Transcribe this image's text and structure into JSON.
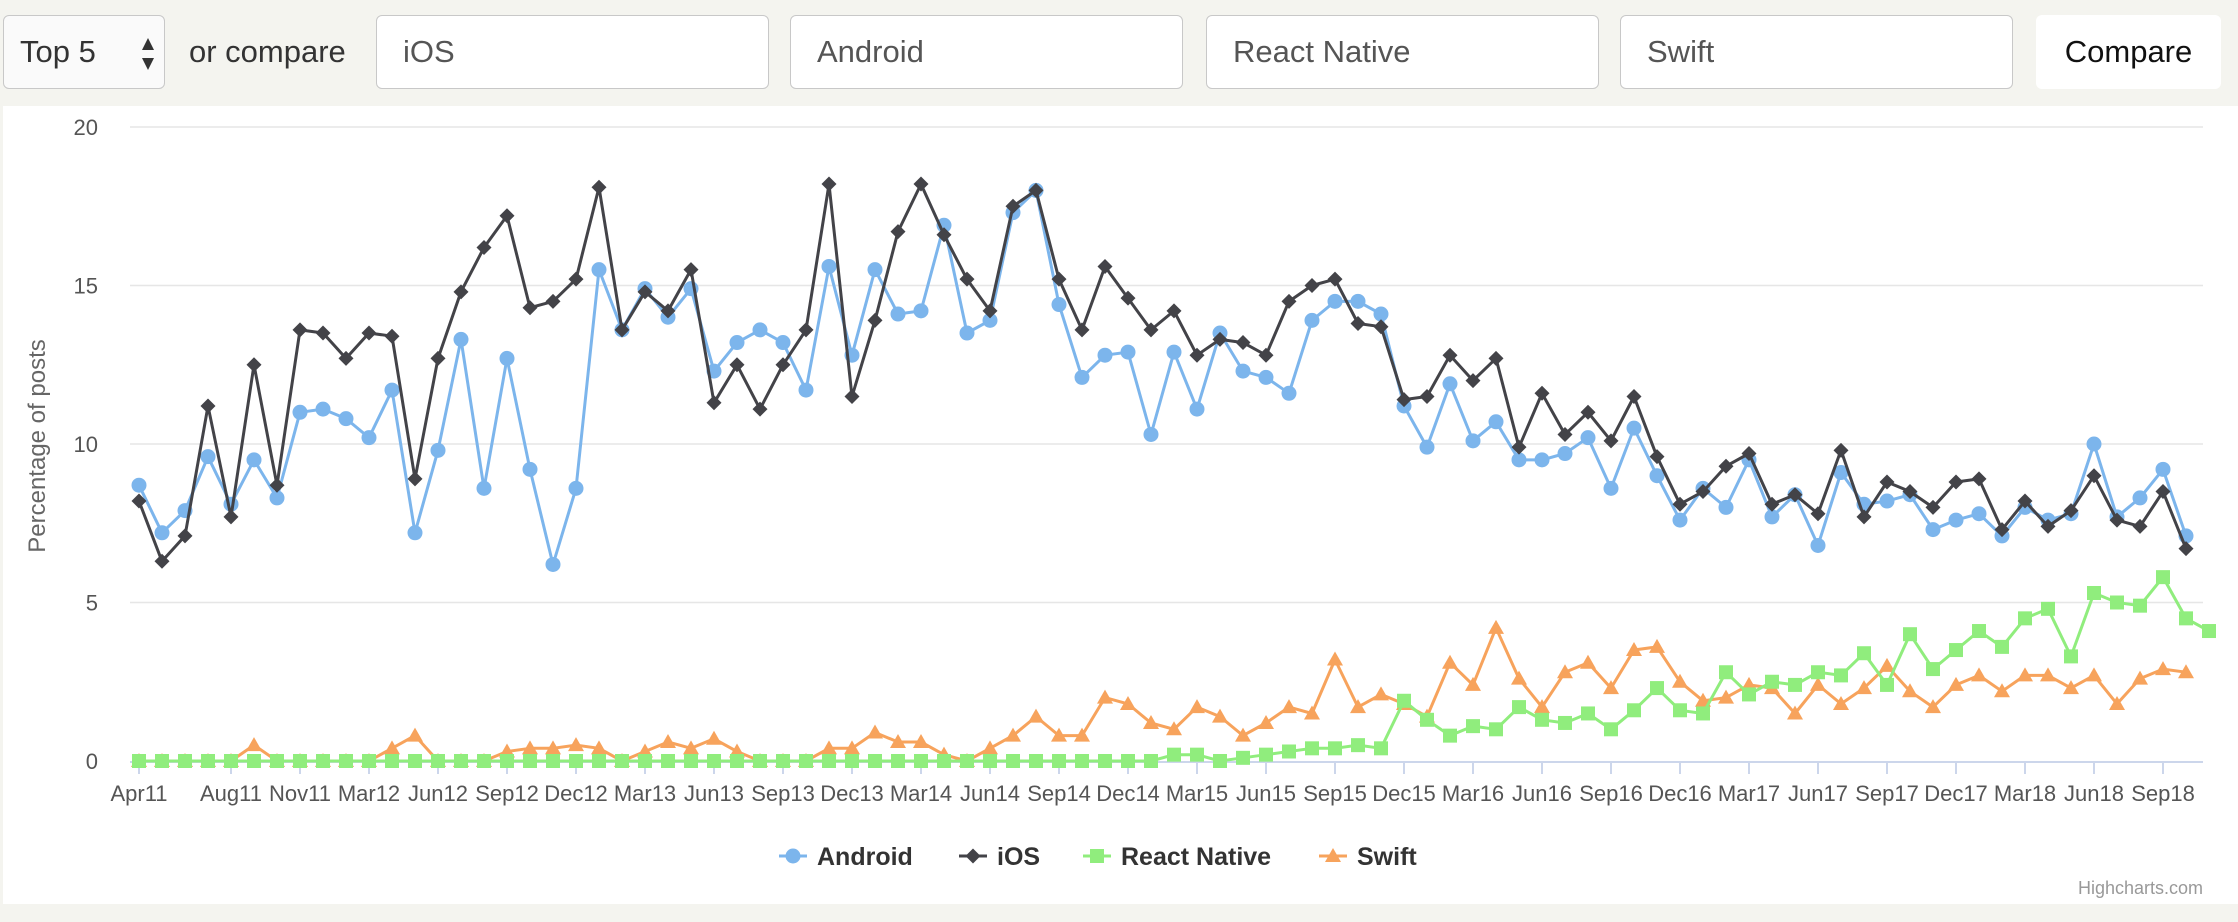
{
  "controls": {
    "top_select_value": "Top 5",
    "or_compare_label": "or compare",
    "compare_inputs": [
      "iOS",
      "Android",
      "React Native",
      "Swift"
    ],
    "compare_button_label": "Compare"
  },
  "credits": "Highcharts.com",
  "chart_data": {
    "type": "line",
    "title": "",
    "xlabel": "",
    "ylabel": "Percentage of posts",
    "ylim": [
      0,
      20
    ],
    "yticks": [
      0,
      5,
      10,
      15,
      20
    ],
    "grid": true,
    "legend_position": "bottom-center",
    "x_start": "Apr11",
    "x_interval": "monthly",
    "xtick_labels": [
      "Apr11",
      "Aug11",
      "Nov11",
      "Mar12",
      "Jun12",
      "Sep12",
      "Dec12",
      "Mar13",
      "Jun13",
      "Sep13",
      "Dec13",
      "Mar14",
      "Jun14",
      "Sep14",
      "Dec14",
      "Mar15",
      "Jun15",
      "Sep15",
      "Dec15",
      "Mar16",
      "Jun16",
      "Sep16",
      "Dec16",
      "Mar17",
      "Jun17",
      "Sep17",
      "Dec17",
      "Mar18",
      "Jun18",
      "Sep18"
    ],
    "series": [
      {
        "name": "Android",
        "color": "#7cb5ec",
        "marker": "circle",
        "values": [
          8.7,
          7.2,
          7.9,
          9.6,
          8.1,
          9.5,
          8.3,
          11.0,
          11.1,
          10.8,
          10.2,
          11.7,
          7.2,
          9.8,
          13.3,
          8.6,
          12.7,
          9.2,
          6.2,
          8.6,
          15.5,
          13.6,
          14.9,
          14.0,
          14.9,
          12.3,
          13.2,
          13.6,
          13.2,
          11.7,
          15.6,
          12.8,
          15.5,
          14.1,
          14.2,
          16.9,
          13.5,
          13.9,
          17.3,
          18.0,
          14.4,
          12.1,
          12.8,
          12.9,
          10.3,
          12.9,
          11.1,
          13.5,
          12.3,
          12.1,
          11.6,
          13.9,
          14.5,
          14.5,
          14.1,
          11.2,
          9.9,
          11.9,
          10.1,
          10.7,
          9.5,
          9.5,
          9.7,
          10.2,
          8.6,
          10.5,
          9.0,
          7.6,
          8.6,
          8.0,
          9.5,
          7.7,
          8.4,
          6.8,
          9.1,
          8.1,
          8.2,
          8.4,
          7.3,
          7.6,
          7.8,
          7.1,
          8.0,
          7.6,
          7.8,
          10.0,
          7.7,
          8.3,
          9.2,
          7.1
        ]
      },
      {
        "name": "iOS",
        "color": "#434348",
        "marker": "diamond",
        "values": [
          8.2,
          6.3,
          7.1,
          11.2,
          7.7,
          12.5,
          8.7,
          13.6,
          13.5,
          12.7,
          13.5,
          13.4,
          8.9,
          12.7,
          14.8,
          16.2,
          17.2,
          14.3,
          14.5,
          15.2,
          18.1,
          13.6,
          14.8,
          14.2,
          15.5,
          11.3,
          12.5,
          11.1,
          12.5,
          13.6,
          18.2,
          11.5,
          13.9,
          16.7,
          18.2,
          16.6,
          15.2,
          14.2,
          17.5,
          18.0,
          15.2,
          13.6,
          15.6,
          14.6,
          13.6,
          14.2,
          12.8,
          13.3,
          13.2,
          12.8,
          14.5,
          15.0,
          15.2,
          13.8,
          13.7,
          11.4,
          11.5,
          12.8,
          12.0,
          12.7,
          9.9,
          11.6,
          10.3,
          11.0,
          10.1,
          11.5,
          9.6,
          8.1,
          8.5,
          9.3,
          9.7,
          8.1,
          8.4,
          7.8,
          9.8,
          7.7,
          8.8,
          8.5,
          8.0,
          8.8,
          8.9,
          7.3,
          8.2,
          7.4,
          7.9,
          9.0,
          7.6,
          7.4,
          8.5,
          6.7
        ]
      },
      {
        "name": "React Native",
        "color": "#90ed7d",
        "marker": "square",
        "values": [
          0,
          0,
          0,
          0,
          0,
          0,
          0,
          0,
          0,
          0,
          0,
          0,
          0,
          0,
          0,
          0,
          0,
          0,
          0,
          0,
          0,
          0,
          0,
          0,
          0,
          0,
          0,
          0,
          0,
          0,
          0,
          0,
          0,
          0,
          0,
          0,
          0,
          0,
          0,
          0,
          0,
          0,
          0,
          0,
          0,
          0.2,
          0.2,
          0,
          0.1,
          0.2,
          0.3,
          0.4,
          0.4,
          0.5,
          0.4,
          1.9,
          1.3,
          0.8,
          1.1,
          1.0,
          1.7,
          1.3,
          1.2,
          1.5,
          1.0,
          1.6,
          2.3,
          1.6,
          1.5,
          2.8,
          2.1,
          2.5,
          2.4,
          2.8,
          2.7,
          3.4,
          2.4,
          4.0,
          2.9,
          3.5,
          4.1,
          3.6,
          4.5,
          4.8,
          3.3,
          5.3,
          5.0,
          4.9,
          5.8,
          4.5,
          4.1
        ]
      },
      {
        "name": "Swift",
        "color": "#f7a35c",
        "marker": "triangle",
        "values": [
          0,
          0,
          0,
          0,
          0,
          0.5,
          0,
          0,
          0,
          0,
          0,
          0.4,
          0.8,
          0,
          0,
          0,
          0.3,
          0.4,
          0.4,
          0.5,
          0.4,
          0,
          0.3,
          0.6,
          0.4,
          0.7,
          0.3,
          0,
          0,
          0,
          0.4,
          0.4,
          0.9,
          0.6,
          0.6,
          0.2,
          0,
          0.4,
          0.8,
          1.4,
          0.8,
          0.8,
          2.0,
          1.8,
          1.2,
          1.0,
          1.7,
          1.4,
          0.8,
          1.2,
          1.7,
          1.5,
          3.2,
          1.7,
          2.1,
          1.8,
          1.4,
          3.1,
          2.4,
          4.2,
          2.6,
          1.7,
          2.8,
          3.1,
          2.3,
          3.5,
          3.6,
          2.5,
          1.9,
          2.0,
          2.4,
          2.3,
          1.5,
          2.4,
          1.8,
          2.3,
          3.0,
          2.2,
          1.7,
          2.4,
          2.7,
          2.2,
          2.7,
          2.7,
          2.3,
          2.7,
          1.8,
          2.6,
          2.9,
          2.8
        ]
      }
    ]
  }
}
